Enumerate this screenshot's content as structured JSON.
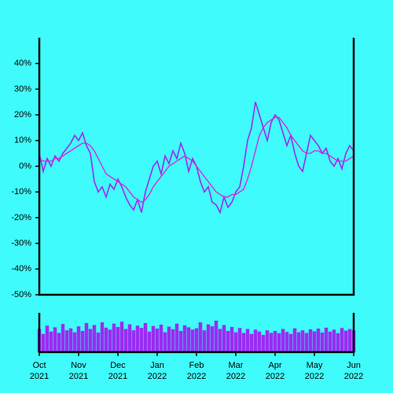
{
  "chart_data": [
    {
      "type": "line",
      "ylim": [
        -50,
        50
      ],
      "yticks": [
        {
          "value": -50,
          "label": "-50%"
        },
        {
          "value": -40,
          "label": "-40%"
        },
        {
          "value": -30,
          "label": "-30%"
        },
        {
          "value": -20,
          "label": "-20%"
        },
        {
          "value": -10,
          "label": "-10%"
        },
        {
          "value": 0,
          "label": "0%"
        },
        {
          "value": 10,
          "label": "10%"
        },
        {
          "value": 20,
          "label": "20%"
        },
        {
          "value": 30,
          "label": "30%"
        },
        {
          "value": 40,
          "label": "40%"
        }
      ],
      "series": [
        {
          "color": "#9a2cf2",
          "values": [
            5,
            -2,
            3,
            0,
            4,
            2,
            5,
            7,
            9,
            12,
            10,
            13,
            8,
            5,
            -6,
            -10,
            -8,
            -12,
            -7,
            -9,
            -5,
            -8,
            -12,
            -15,
            -17,
            -13,
            -18,
            -10,
            -5,
            0,
            2,
            -3,
            4,
            1,
            6,
            3,
            9,
            5,
            -2,
            3,
            0,
            -6,
            -10,
            -8,
            -14,
            -15,
            -18,
            -12,
            -16,
            -14,
            -10,
            -8,
            0,
            10,
            15,
            25,
            20,
            15,
            10,
            17,
            20,
            18,
            13,
            8,
            12,
            5,
            0,
            -2,
            5,
            12,
            10,
            8,
            5,
            7,
            2,
            0,
            3,
            -1,
            5,
            8,
            6
          ]
        },
        {
          "color": "#e020d8",
          "values": [
            3,
            2,
            2,
            2,
            3,
            3,
            4,
            5,
            6,
            7,
            8,
            9,
            9,
            8,
            6,
            3,
            0,
            -3,
            -4,
            -5,
            -6,
            -7,
            -8,
            -10,
            -12,
            -13,
            -14,
            -13,
            -11,
            -8,
            -6,
            -4,
            -2,
            0,
            1,
            2,
            3,
            4,
            3,
            2,
            0,
            -2,
            -4,
            -6,
            -8,
            -10,
            -11,
            -12,
            -12,
            -11,
            -11,
            -10,
            -9,
            -5,
            0,
            6,
            12,
            15,
            17,
            18,
            19,
            19,
            17,
            15,
            12,
            10,
            8,
            6,
            5,
            5,
            6,
            6,
            5,
            5,
            4,
            3,
            2,
            2,
            2,
            3,
            4
          ]
        }
      ]
    },
    {
      "type": "bar",
      "color": "#9a2cf2",
      "categories": [
        "Oct 2021",
        null,
        null,
        null,
        null,
        null,
        null,
        null,
        null,
        null,
        "Nov 2021",
        null,
        null,
        null,
        null,
        null,
        null,
        null,
        null,
        null,
        "Dec 2021",
        null,
        null,
        null,
        null,
        null,
        null,
        null,
        null,
        null,
        "Jan 2022",
        null,
        null,
        null,
        null,
        null,
        null,
        null,
        null,
        null,
        "Feb 2022",
        null,
        null,
        null,
        null,
        null,
        null,
        null,
        null,
        null,
        "Mar 2022",
        null,
        null,
        null,
        null,
        null,
        null,
        null,
        null,
        null,
        "Apr 2022",
        null,
        null,
        null,
        null,
        null,
        null,
        null,
        null,
        null,
        "May 2022",
        null,
        null,
        null,
        null,
        null,
        null,
        null,
        null,
        null,
        "Jun 2022"
      ],
      "values": [
        70,
        55,
        80,
        62,
        75,
        58,
        85,
        66,
        72,
        60,
        78,
        64,
        88,
        70,
        82,
        59,
        90,
        74,
        68,
        86,
        76,
        92,
        70,
        84,
        66,
        80,
        73,
        88,
        62,
        79,
        71,
        83,
        60,
        77,
        69,
        86,
        64,
        81,
        75,
        68,
        72,
        90,
        66,
        84,
        78,
        95,
        70,
        82,
        64,
        76,
        60,
        73,
        58,
        70,
        55,
        68,
        62,
        52,
        66,
        58,
        64,
        57,
        70,
        61,
        55,
        72,
        60,
        66,
        58,
        69,
        63,
        71,
        59,
        74,
        62,
        68,
        57,
        73,
        65,
        70,
        66
      ]
    }
  ]
}
